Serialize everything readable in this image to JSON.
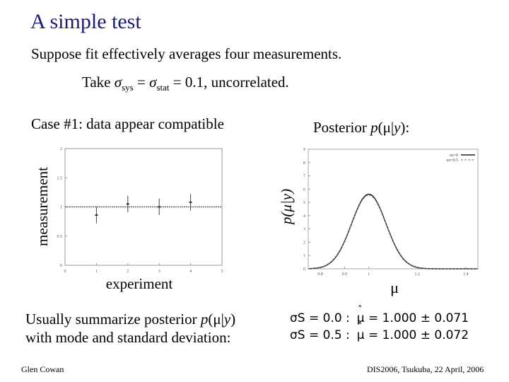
{
  "title": "A simple test",
  "intro": "Suppose fit effectively averages four measurements.",
  "take": {
    "prefix": "Take ",
    "sigma": "σ",
    "sys": "sys",
    "eq1": " = ",
    "stat": "stat",
    "eq2": " = 0.1, uncorrelated."
  },
  "case_label": "Case #1: data appear compatible",
  "posterior_title": {
    "prefix": "Posterior ",
    "p": "p",
    "open": "(",
    "mu": "μ",
    "bar": "|",
    "y": "y",
    "close": "):"
  },
  "summary": {
    "line1_prefix": "Usually summarize posterior ",
    "p": "p",
    "mu_expr": "(μ|",
    "y": "y",
    "close": ")",
    "line2": "with mode and standard deviation:"
  },
  "results": [
    {
      "sigma_label": "σS = 0.0 :",
      "mu_hat": "μ",
      "value": "= 1.000 ± 0.071"
    },
    {
      "sigma_label": "σS = 0.5 :",
      "mu_hat": "μ",
      "value": "= 1.000 ± 0.072"
    }
  ],
  "footer": {
    "author": "Glen Cowan",
    "conference": "DIS2006, Tsukuba, 22 April, 2006"
  },
  "chart_data": [
    {
      "type": "scatter",
      "xlabel": "experiment",
      "ylabel": "measurement",
      "xlim": [
        0,
        5
      ],
      "ylim": [
        0,
        2
      ],
      "xticks": [
        "0",
        "1",
        "2",
        "3",
        "4",
        "5"
      ],
      "yticks": [
        "0",
        "0.5",
        "1",
        "1.5",
        "2"
      ],
      "series": [
        {
          "x": [
            1,
            2,
            3,
            4
          ],
          "y": [
            0.86,
            1.05,
            1.0,
            1.08
          ],
          "err": [
            0.141,
            0.141,
            0.141,
            0.141
          ]
        }
      ],
      "reference_line": 1.0,
      "grid": false
    },
    {
      "type": "line",
      "xlabel": "μ",
      "ylabel": "p(μ|y)",
      "xlim": [
        0.75,
        1.45
      ],
      "ylim": [
        0,
        9
      ],
      "xticks": [
        "0.8",
        "0.9",
        "1",
        "1.2",
        "1.4"
      ],
      "yticks": [
        "0",
        "1",
        "2",
        "3",
        "4",
        "5",
        "6",
        "7",
        "8",
        "9"
      ],
      "legend_placement": "top-right",
      "legend": [
        "σs=0",
        "σs=0.5"
      ],
      "series": [
        {
          "name": "σs=0",
          "mode": 1.0,
          "sigma": 0.071
        },
        {
          "name": "σs=0.5",
          "mode": 1.0,
          "sigma": 0.072
        }
      ],
      "grid": false
    }
  ]
}
